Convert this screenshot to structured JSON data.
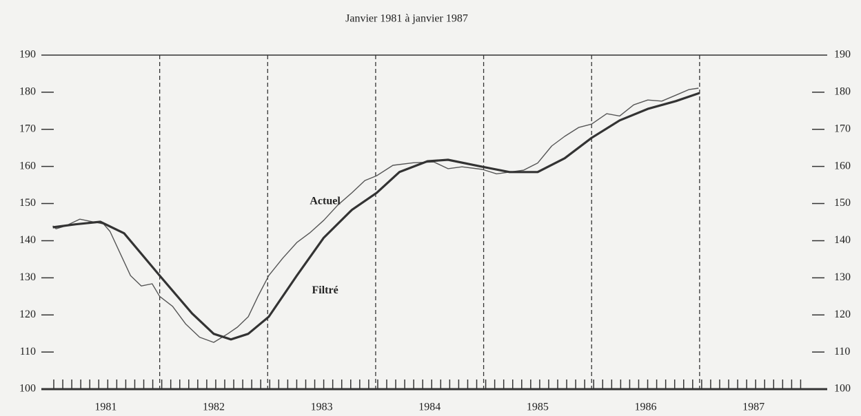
{
  "chart_data": {
    "type": "line",
    "title": "Janvier 1981 à janvier 1987",
    "xlim": [
      1981,
      1988.15
    ],
    "ylim": [
      100,
      190
    ],
    "yticks": [
      100,
      110,
      120,
      130,
      140,
      150,
      160,
      170,
      180,
      190
    ],
    "year_labels": [
      1981,
      1982,
      1983,
      1984,
      1985,
      1986,
      1987
    ],
    "dashed_lines": [
      1982,
      1983,
      1984,
      1985,
      1986,
      1987
    ],
    "series": [
      {
        "name": "Actuel",
        "color": "#555555",
        "width": 1.4,
        "x": [
          1981.01,
          1981.04,
          1981.13,
          1981.26,
          1981.38,
          1981.48,
          1981.54,
          1981.64,
          1981.73,
          1981.83,
          1981.93,
          1982.0,
          1982.12,
          1982.24,
          1982.37,
          1982.5,
          1982.63,
          1982.72,
          1982.82,
          1982.91,
          1983.01,
          1983.14,
          1983.27,
          1983.39,
          1983.52,
          1983.65,
          1983.78,
          1983.9,
          1984.01,
          1984.16,
          1984.35,
          1984.54,
          1984.67,
          1984.8,
          1984.99,
          1985.12,
          1985.24,
          1985.37,
          1985.5,
          1985.63,
          1985.75,
          1985.88,
          1986.0,
          1986.14,
          1986.26,
          1986.39,
          1986.52,
          1986.65,
          1986.78,
          1986.9,
          1986.99
        ],
        "values": [
          144,
          143.2,
          144,
          145.8,
          145.1,
          144.5,
          142.5,
          136.2,
          130.6,
          127.8,
          128.4,
          125,
          122.3,
          117.6,
          114,
          112.6,
          114.9,
          116.7,
          119.5,
          125,
          130.6,
          135.3,
          139.5,
          142.1,
          145.5,
          149.6,
          152.9,
          156.2,
          157.5,
          160.3,
          161,
          161.2,
          159.4,
          159.9,
          159.2,
          158,
          158.5,
          159,
          160.9,
          165.5,
          168.1,
          170.5,
          171.4,
          174.2,
          173.6,
          176.6,
          177.9,
          177.6,
          179.2,
          180.7,
          181.1
        ]
      },
      {
        "name": "Filtré",
        "color": "#333333",
        "width": 3.2,
        "x": [
          1981.01,
          1981.22,
          1981.45,
          1981.67,
          1982.0,
          1982.3,
          1982.5,
          1982.66,
          1982.82,
          1983.01,
          1983.27,
          1983.52,
          1983.78,
          1984.01,
          1984.22,
          1984.48,
          1984.67,
          1984.99,
          1985.24,
          1985.5,
          1985.75,
          1986.0,
          1986.26,
          1986.52,
          1986.78,
          1987.0
        ],
        "values": [
          143.6,
          144.4,
          145.1,
          142,
          130.6,
          120.4,
          114.9,
          113.4,
          114.9,
          119.5,
          130.6,
          140.8,
          148.3,
          152.9,
          158.5,
          161.4,
          161.8,
          159.9,
          158.5,
          158.5,
          162.2,
          167.7,
          172.4,
          175.5,
          177.6,
          179.8
        ]
      }
    ],
    "annotations": [
      {
        "text": "Actuel",
        "x": 1983.39,
        "y": 150.5
      },
      {
        "text": "Filtré",
        "x": 1983.41,
        "y": 126.5
      }
    ]
  }
}
